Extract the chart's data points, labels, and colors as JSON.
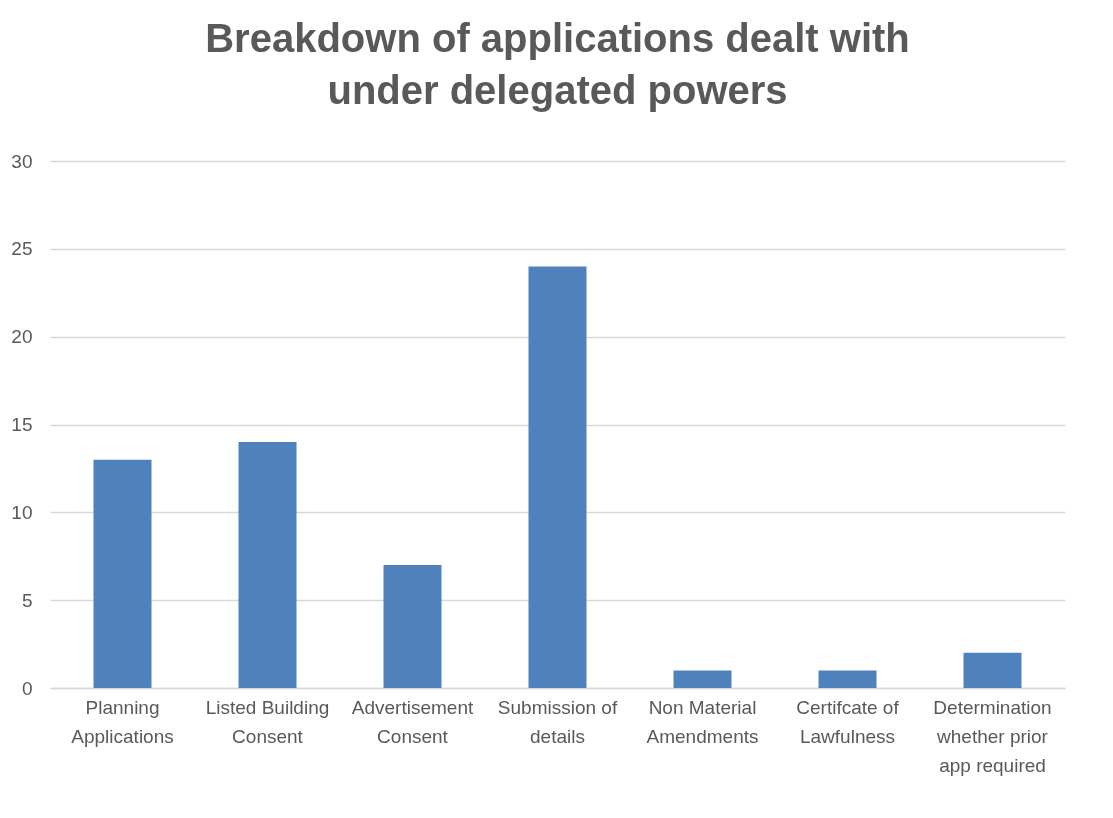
{
  "chart_data": {
    "type": "bar",
    "title": "Breakdown of applications dealt with under delegated powers",
    "categories": [
      "Planning Applications",
      "Listed Building Consent",
      "Advertisement Consent",
      "Submission of details",
      "Non Material Amendments",
      "Certifcate of Lawfulness",
      "Determination whether prior app required"
    ],
    "values": [
      13,
      14,
      7,
      24,
      1,
      1,
      2
    ],
    "color": "#4f81bd",
    "ylim": [
      0,
      30
    ],
    "yticks": [
      0,
      5,
      10,
      15,
      20,
      25,
      30
    ],
    "grid": "y"
  }
}
